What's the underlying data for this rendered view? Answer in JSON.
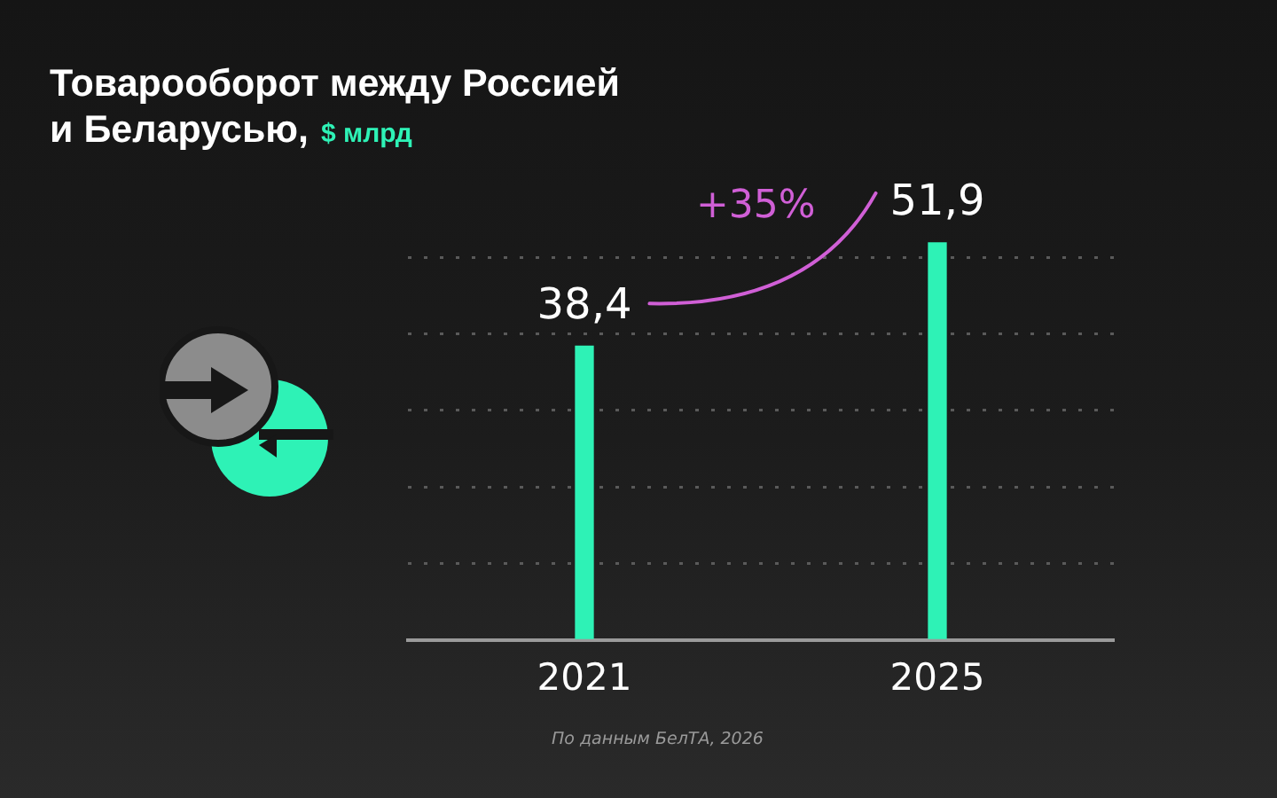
{
  "chart_data": {
    "type": "bar",
    "title": "Товарооборот между Россией и Беларусью,",
    "subtitle": "$ млрд",
    "categories": [
      "2021",
      "2025"
    ],
    "values": [
      38.4,
      51.9
    ],
    "value_labels": [
      "38,4",
      "51,9"
    ],
    "color": "#2ef2b6",
    "annotations": [
      "+35%",
      "По данным БелТА, 2026"
    ],
    "yticks": [
      {
        "value": 0,
        "label": null
      },
      {
        "value": 10,
        "label": null
      },
      {
        "value": 20,
        "label": null
      },
      {
        "value": 30,
        "label": null
      },
      {
        "value": 40,
        "label": null
      },
      {
        "value": 50,
        "label": null
      }
    ],
    "grid": "y",
    "tick_labels": "x"
  }
}
